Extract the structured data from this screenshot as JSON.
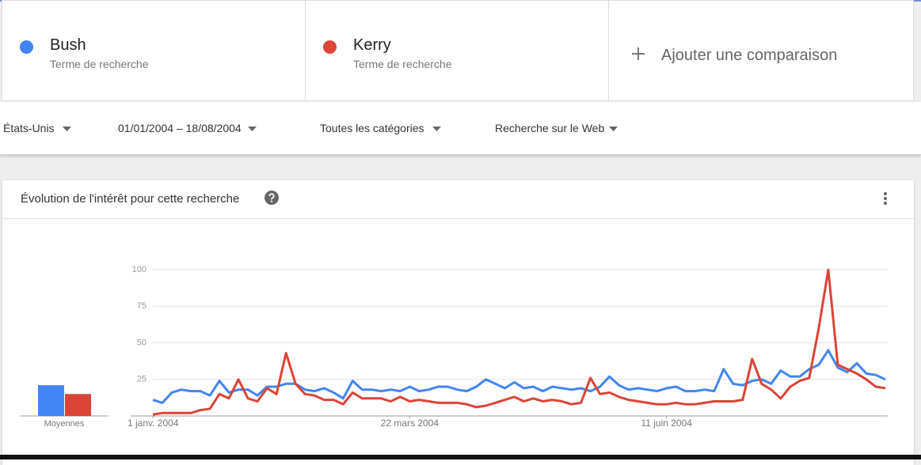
{
  "comparison": {
    "subtitles": [
      "Terme de recherche",
      "Terme de recherche"
    ],
    "add": "Ajouter une comparaison"
  },
  "filters": [
    "États-Unis",
    "01/01/2004 – 18/08/2004",
    "Toutes les catégories",
    "Recherche sur le Web"
  ],
  "chart_data": {
    "type": "line",
    "title": "Évolution de l'intérêt pour cette recherche",
    "x": [
      0,
      3,
      6,
      9,
      12,
      15,
      18,
      21,
      24,
      27,
      30,
      33,
      36,
      39,
      42,
      45,
      48,
      51,
      54,
      57,
      60,
      63,
      66,
      69,
      72,
      75,
      78,
      81,
      84,
      87,
      90,
      93,
      96,
      99,
      102,
      105,
      108,
      111,
      114,
      117,
      120,
      123,
      126,
      129,
      132,
      135,
      138,
      141,
      144,
      147,
      150,
      153,
      156,
      159,
      162,
      165,
      168,
      171,
      174,
      177,
      180,
      183,
      186,
      189,
      192,
      195,
      198,
      201,
      204,
      207,
      210,
      213,
      216,
      219,
      222,
      225,
      228,
      231
    ],
    "xlim": [
      0,
      231
    ],
    "xticks": [
      {
        "value": 0,
        "label": "1 janv. 2004"
      },
      {
        "value": 81,
        "label": "22 mars 2004"
      },
      {
        "value": 162,
        "label": "11 juin 2004"
      }
    ],
    "ylim": [
      0,
      100
    ],
    "yticks": [
      25,
      50,
      75,
      100
    ],
    "grid": true,
    "averages_label": "Moyennes",
    "series": [
      {
        "name": "Bush",
        "color": "#4285f4",
        "average": 21,
        "values": [
          11,
          9,
          16,
          18,
          17,
          17,
          14,
          24,
          16,
          18,
          18,
          14,
          20,
          20,
          22,
          22,
          18,
          17,
          19,
          16,
          12,
          24,
          18,
          18,
          17,
          18,
          17,
          20,
          17,
          18,
          20,
          20,
          18,
          17,
          20,
          25,
          22,
          19,
          23,
          19,
          20,
          17,
          20,
          19,
          18,
          19,
          17,
          20,
          27,
          21,
          18,
          19,
          18,
          17,
          19,
          20,
          17,
          17,
          18,
          17,
          32,
          22,
          21,
          24,
          25,
          22,
          31,
          27,
          27,
          32,
          35,
          45,
          33,
          30,
          36,
          29,
          28,
          25
        ]
      },
      {
        "name": "Kerry",
        "color": "#db4437",
        "average": 15,
        "values": [
          1,
          2,
          2,
          2,
          2,
          4,
          5,
          15,
          12,
          25,
          12,
          10,
          19,
          15,
          43,
          22,
          15,
          14,
          11,
          11,
          8,
          16,
          12,
          12,
          12,
          10,
          13,
          10,
          11,
          10,
          9,
          9,
          9,
          8,
          6,
          7,
          9,
          11,
          13,
          10,
          12,
          10,
          11,
          10,
          8,
          9,
          26,
          15,
          16,
          13,
          11,
          10,
          9,
          8,
          8,
          9,
          8,
          8,
          9,
          10,
          10,
          10,
          11,
          39,
          22,
          18,
          12,
          20,
          24,
          26,
          60,
          100,
          35,
          32,
          29,
          25,
          20,
          19
        ]
      }
    ]
  }
}
